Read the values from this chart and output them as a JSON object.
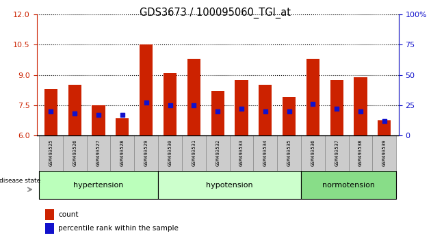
{
  "title": "GDS3673 / 100095060_TGI_at",
  "samples": [
    "GSM493525",
    "GSM493526",
    "GSM493527",
    "GSM493528",
    "GSM493529",
    "GSM493530",
    "GSM493531",
    "GSM493532",
    "GSM493533",
    "GSM493534",
    "GSM493535",
    "GSM493536",
    "GSM493537",
    "GSM493538",
    "GSM493539"
  ],
  "count_values": [
    8.3,
    8.5,
    7.5,
    6.85,
    10.5,
    9.1,
    9.8,
    8.2,
    8.75,
    8.5,
    7.9,
    9.8,
    8.75,
    8.9,
    6.75
  ],
  "percentile_values": [
    20,
    18,
    17,
    17,
    27,
    25,
    25,
    20,
    22,
    20,
    20,
    26,
    22,
    20,
    12
  ],
  "ylim_left": [
    6,
    12
  ],
  "ylim_right": [
    0,
    100
  ],
  "yticks_left": [
    6,
    7.5,
    9,
    10.5,
    12
  ],
  "yticks_right": [
    0,
    25,
    50,
    75,
    100
  ],
  "bar_color": "#cc2200",
  "marker_color": "#1111cc",
  "bar_width": 0.55,
  "groups": [
    {
      "label": "hypertension",
      "start": 0,
      "end": 5
    },
    {
      "label": "hypotension",
      "start": 5,
      "end": 11
    },
    {
      "label": "normotension",
      "start": 11,
      "end": 15
    }
  ],
  "group_colors": [
    "#bbffbb",
    "#ccffcc",
    "#88dd88"
  ],
  "sample_bg": "#cccccc",
  "left_axis_color": "#cc2200",
  "right_axis_color": "#1111cc",
  "legend_items": [
    "count",
    "percentile rank within the sample"
  ],
  "legend_colors": [
    "#cc2200",
    "#1111cc"
  ],
  "disease_state_label": "disease state"
}
